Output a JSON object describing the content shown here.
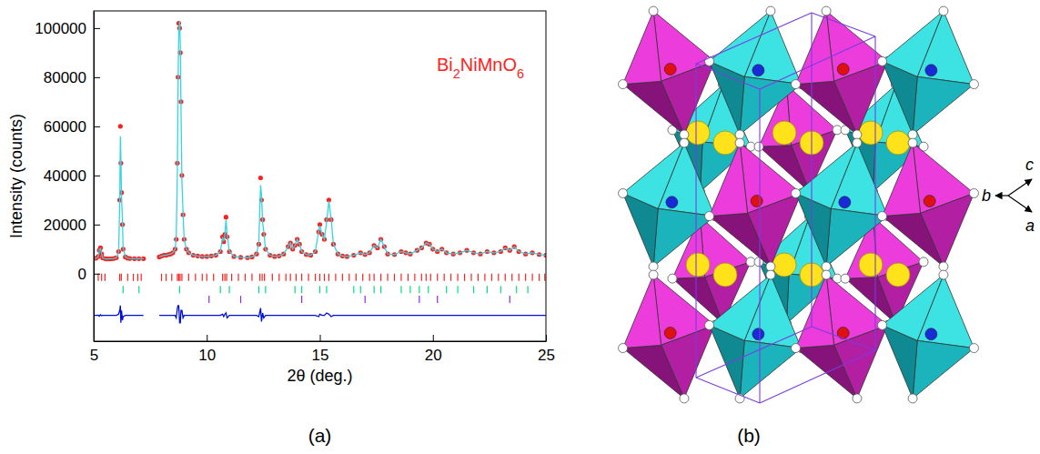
{
  "chart_data": {
    "type": "scatter",
    "panel_label": "(a)",
    "annotations": [
      "Bi2NiMnO6"
    ],
    "xlabel": "2θ (deg.)",
    "ylabel": "Intensity (counts)",
    "xlim": [
      5,
      25
    ],
    "xticks": [
      5,
      10,
      15,
      20,
      25
    ],
    "ylim": [
      -27500,
      107000
    ],
    "yticks": [
      0,
      20000,
      40000,
      60000,
      80000,
      100000
    ],
    "x": [
      5,
      5.1,
      5.2,
      5.25,
      5.3,
      5.35,
      5.4,
      5.5,
      5.6,
      5.7,
      5.8,
      5.9,
      6,
      6.1,
      6.15,
      6.18,
      6.2,
      6.23,
      6.27,
      6.3,
      6.4,
      6.5,
      6.6,
      6.8,
      7,
      7.2,
      7.55,
      7.9,
      8,
      8.1,
      8.2,
      8.3,
      8.4,
      8.5,
      8.6,
      8.65,
      8.7,
      8.73,
      8.76,
      8.8,
      8.83,
      8.86,
      8.9,
      8.95,
      9,
      9.1,
      9.2,
      9.4,
      9.6,
      9.8,
      10,
      10.2,
      10.4,
      10.6,
      10.7,
      10.75,
      10.8,
      10.85,
      10.9,
      11,
      11.2,
      11.5,
      11.8,
      12,
      12.2,
      12.3,
      12.38,
      12.42,
      12.47,
      12.52,
      12.6,
      12.8,
      13,
      13.2,
      13.4,
      13.6,
      13.7,
      13.8,
      13.9,
      14,
      14.1,
      14.2,
      14.4,
      14.6,
      14.8,
      14.95,
      15,
      15.1,
      15.2,
      15.3,
      15.4,
      15.5,
      15.6,
      15.8,
      16,
      16.2,
      16.5,
      16.8,
      17,
      17.2,
      17.4,
      17.55,
      17.7,
      17.85,
      18,
      18.3,
      18.6,
      18.8,
      19,
      19.3,
      19.5,
      19.7,
      19.85,
      20,
      20.2,
      20.4,
      20.6,
      20.9,
      21.2,
      21.5,
      21.8,
      22.1,
      22.4,
      22.7,
      23,
      23.2,
      23.4,
      23.6,
      23.8,
      24.1,
      24.4,
      24.7,
      25
    ],
    "series": [
      {
        "type": "scatter",
        "color": "#ff2020",
        "marker": "circle",
        "values": [
          6200,
          6300,
          7000,
          9500,
          10500,
          8000,
          6400,
          6100,
          6000,
          6000,
          6100,
          6200,
          6500,
          9000,
          30000,
          60000,
          45000,
          33000,
          20000,
          10000,
          6800,
          6300,
          6200,
          6100,
          6100,
          6100,
          null,
          6800,
          7200,
          7500,
          7500,
          7800,
          8000,
          8500,
          10000,
          14000,
          45000,
          80000,
          102000,
          100000,
          90000,
          70000,
          40000,
          24000,
          14000,
          10000,
          8500,
          7500,
          7200,
          7000,
          7000,
          7200,
          7500,
          9000,
          15000,
          13000,
          16000,
          23000,
          15000,
          9000,
          7000,
          6600,
          6500,
          6800,
          8000,
          12000,
          39000,
          30000,
          22000,
          16000,
          10000,
          7500,
          7000,
          7200,
          8000,
          11000,
          12500,
          10000,
          11500,
          14000,
          12000,
          9000,
          7800,
          7500,
          9000,
          17000,
          20000,
          16000,
          14000,
          22000,
          30000,
          22000,
          12000,
          8000,
          7200,
          7000,
          7500,
          8500,
          7800,
          8500,
          11500,
          10500,
          14000,
          11000,
          8000,
          7800,
          9000,
          8500,
          8000,
          9500,
          10500,
          12500,
          12000,
          10000,
          9000,
          10000,
          8500,
          8000,
          8500,
          9500,
          8500,
          8000,
          9000,
          8500,
          9000,
          10500,
          9500,
          11000,
          9000,
          8000,
          8500,
          7800,
          7500
        ]
      },
      {
        "type": "line",
        "color": "#33d6e0",
        "line_style": "solid",
        "values": [
          6150,
          6250,
          6900,
          9800,
          10200,
          8100,
          6400,
          6100,
          6000,
          6050,
          6100,
          6200,
          6500,
          8500,
          28000,
          56000,
          48000,
          31000,
          22000,
          10500,
          6800,
          6300,
          6200,
          6100,
          6100,
          6100,
          null,
          6800,
          7200,
          7500,
          7500,
          7800,
          8000,
          8500,
          10000,
          15000,
          42000,
          76000,
          98000,
          103000,
          93000,
          68000,
          38000,
          25000,
          14000,
          10000,
          8500,
          7500,
          7200,
          7000,
          7000,
          7200,
          7500,
          9000,
          14500,
          13500,
          15500,
          22000,
          16000,
          9000,
          7000,
          6600,
          6500,
          6800,
          8000,
          12500,
          36000,
          32000,
          21000,
          17000,
          10000,
          7500,
          7000,
          7200,
          8000,
          11000,
          12500,
          10000,
          11500,
          14000,
          12000,
          9000,
          7800,
          7500,
          9000,
          17500,
          19500,
          16000,
          14000,
          21000,
          29500,
          22500,
          12000,
          8000,
          7200,
          7000,
          7500,
          8500,
          7800,
          8500,
          11500,
          10500,
          14000,
          11000,
          8000,
          7800,
          9000,
          8500,
          8000,
          9500,
          10500,
          12500,
          12000,
          10000,
          9000,
          10000,
          8500,
          8000,
          8500,
          9500,
          8500,
          8000,
          9000,
          8500,
          9000,
          10500,
          9500,
          11000,
          9000,
          8000,
          8500,
          7800,
          7500
        ]
      },
      {
        "type": "line",
        "color": "#0010d0",
        "line_style": "solid",
        "values": [
          -17000,
          -17000,
          -16900,
          -17300,
          -16700,
          -17100,
          -17000,
          -17000,
          -17000,
          -17000,
          -17000,
          -17000,
          -17000,
          -16500,
          -15000,
          -13000,
          -20000,
          -15000,
          -19000,
          -17500,
          -17000,
          -17000,
          -17000,
          -17000,
          -17000,
          -17000,
          null,
          -17000,
          -17000,
          -17000,
          -17000,
          -17000,
          -17000,
          -17000,
          -17000,
          -18000,
          -14000,
          -13000,
          -13000,
          -20000,
          -20000,
          -15000,
          -15000,
          -18000,
          -17000,
          -17000,
          -17000,
          -17000,
          -17000,
          -17000,
          -17000,
          -17000,
          -17000,
          -17000,
          -16500,
          -17500,
          -16500,
          -16000,
          -18000,
          -17000,
          -17000,
          -17000,
          -17000,
          -17000,
          -17000,
          -17500,
          -14000,
          -19500,
          -16000,
          -18000,
          -17000,
          -17000,
          -17000,
          -17000,
          -17000,
          -17000,
          -17000,
          -17000,
          -17000,
          -17000,
          -17000,
          -17000,
          -17000,
          -17000,
          -17000,
          -17500,
          -16500,
          -17000,
          -17000,
          -16000,
          -16500,
          -17500,
          -17000,
          -17000,
          -17000,
          -17000,
          -17000,
          -17000,
          -17000,
          -17000,
          -17000,
          -17000,
          -17000,
          -17000,
          -17000,
          -17000,
          -17000,
          -17000,
          -17000,
          -17000,
          -17000,
          -17000,
          -17000,
          -17000,
          -17000,
          -17000,
          -17000,
          -17000,
          -17000,
          -17000,
          -17000,
          -17000,
          -17000,
          -17000,
          -17000,
          -17000,
          -17000,
          -17000,
          -17000,
          -17000,
          -17000,
          -17000,
          -17000
        ]
      },
      {
        "type": "tick",
        "color": "#ff2020",
        "x": [
          5.2,
          5.35,
          5.5,
          6.15,
          6.22,
          6.5,
          6.75,
          6.95,
          7.1,
          8,
          8.2,
          8.45,
          8.7,
          8.76,
          8.82,
          8.9,
          9.2,
          9.5,
          9.8,
          10,
          10.3,
          10.7,
          10.8,
          10.88,
          11.1,
          11.4,
          11.7,
          12,
          12.35,
          12.45,
          12.55,
          12.9,
          13.2,
          13.5,
          13.7,
          13.95,
          14.2,
          14.5,
          14.8,
          15,
          15.2,
          15.4,
          15.7,
          16,
          16.3,
          16.6,
          16.9,
          17.2,
          17.4,
          17.7,
          18,
          18.3,
          18.6,
          18.9,
          19.2,
          19.5,
          19.7,
          19.9,
          20.2,
          20.5,
          20.8,
          21.1,
          21.4,
          21.7,
          22,
          22.3,
          22.6,
          22.9,
          23.2,
          23.5,
          23.8,
          24.1,
          24.4,
          24.7,
          24.95
        ],
        "values": [
          -1500,
          -1500,
          -1500,
          -1500,
          -1500,
          -1500,
          -1500,
          -1500,
          -1500,
          -1500,
          -1500,
          -1500,
          -1500,
          -1500,
          -1500,
          -1500,
          -1500,
          -1500,
          -1500,
          -1500,
          -1500,
          -1500,
          -1500,
          -1500,
          -1500,
          -1500,
          -1500,
          -1500,
          -1500,
          -1500,
          -1500,
          -1500,
          -1500,
          -1500,
          -1500,
          -1500,
          -1500,
          -1500,
          -1500,
          -1500,
          -1500,
          -1500,
          -1500,
          -1500,
          -1500,
          -1500,
          -1500,
          -1500,
          -1500,
          -1500,
          -1500,
          -1500,
          -1500,
          -1500,
          -1500,
          -1500,
          -1500,
          -1500,
          -1500,
          -1500,
          -1500,
          -1500,
          -1500,
          -1500,
          -1500,
          -1500,
          -1500,
          -1500,
          -1500,
          -1500,
          -1500,
          -1500,
          -1500,
          -1500,
          -1500
        ]
      },
      {
        "type": "tick",
        "color": "#00e080",
        "x": [
          6.3,
          7,
          8.8,
          10.6,
          11,
          12.3,
          12.6,
          13.9,
          14.2,
          15,
          15.3,
          16.5,
          16.8,
          17.4,
          17.7,
          18.6,
          19,
          19.4,
          19.8,
          20.6,
          21.1,
          21.8,
          22.4,
          23,
          23.7,
          24.2
        ],
        "values": [
          -6500,
          -6500,
          -6500,
          -6500,
          -6500,
          -6500,
          -6500,
          -6500,
          -6500,
          -6500,
          -6500,
          -6500,
          -6500,
          -6500,
          -6500,
          -6500,
          -6500,
          -6500,
          -6500,
          -6500,
          -6500,
          -6500,
          -6500,
          -6500,
          -6500,
          -6500
        ]
      },
      {
        "type": "tick",
        "color": "#8a2be2",
        "x": [
          10.1,
          11.5,
          14.2,
          17,
          19.4,
          20.2,
          23.4
        ],
        "values": [
          -10500,
          -10500,
          -10500,
          -10500,
          -10500,
          -10500,
          -10500
        ]
      }
    ]
  },
  "diagram": {
    "panel_label": "(b)",
    "axis_labels": [
      "c",
      "b",
      "a"
    ]
  }
}
